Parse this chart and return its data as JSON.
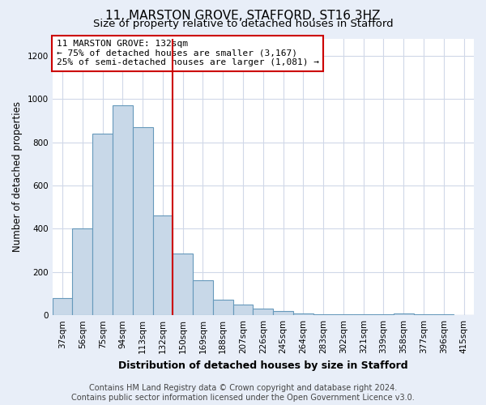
{
  "title": "11, MARSTON GROVE, STAFFORD, ST16 3HZ",
  "subtitle": "Size of property relative to detached houses in Stafford",
  "xlabel": "Distribution of detached houses by size in Stafford",
  "ylabel": "Number of detached properties",
  "categories": [
    "37sqm",
    "56sqm",
    "75sqm",
    "94sqm",
    "113sqm",
    "132sqm",
    "150sqm",
    "169sqm",
    "188sqm",
    "207sqm",
    "226sqm",
    "245sqm",
    "264sqm",
    "283sqm",
    "302sqm",
    "321sqm",
    "339sqm",
    "358sqm",
    "377sqm",
    "396sqm",
    "415sqm"
  ],
  "bar_values": [
    80,
    400,
    840,
    970,
    870,
    460,
    285,
    160,
    70,
    50,
    30,
    20,
    10,
    6,
    5,
    5,
    5,
    8,
    5,
    5,
    0
  ],
  "bar_color": "#c8d8e8",
  "bar_edge_color": "#6699bb",
  "marker_index": 5,
  "marker_line_color": "#cc0000",
  "annotation_text": "11 MARSTON GROVE: 132sqm\n← 75% of detached houses are smaller (3,167)\n25% of semi-detached houses are larger (1,081) →",
  "annotation_box_color": "#ffffff",
  "annotation_box_edge_color": "#cc0000",
  "ylim": [
    0,
    1280
  ],
  "yticks": [
    0,
    200,
    400,
    600,
    800,
    1000,
    1200
  ],
  "footer_text": "Contains HM Land Registry data © Crown copyright and database right 2024.\nContains public sector information licensed under the Open Government Licence v3.0.",
  "fig_background_color": "#e8eef8",
  "plot_background_color": "#ffffff",
  "grid_color": "#d0d8e8",
  "title_fontsize": 11,
  "subtitle_fontsize": 9.5,
  "xlabel_fontsize": 9,
  "ylabel_fontsize": 8.5,
  "tick_fontsize": 7.5,
  "annotation_fontsize": 8,
  "footer_fontsize": 7
}
